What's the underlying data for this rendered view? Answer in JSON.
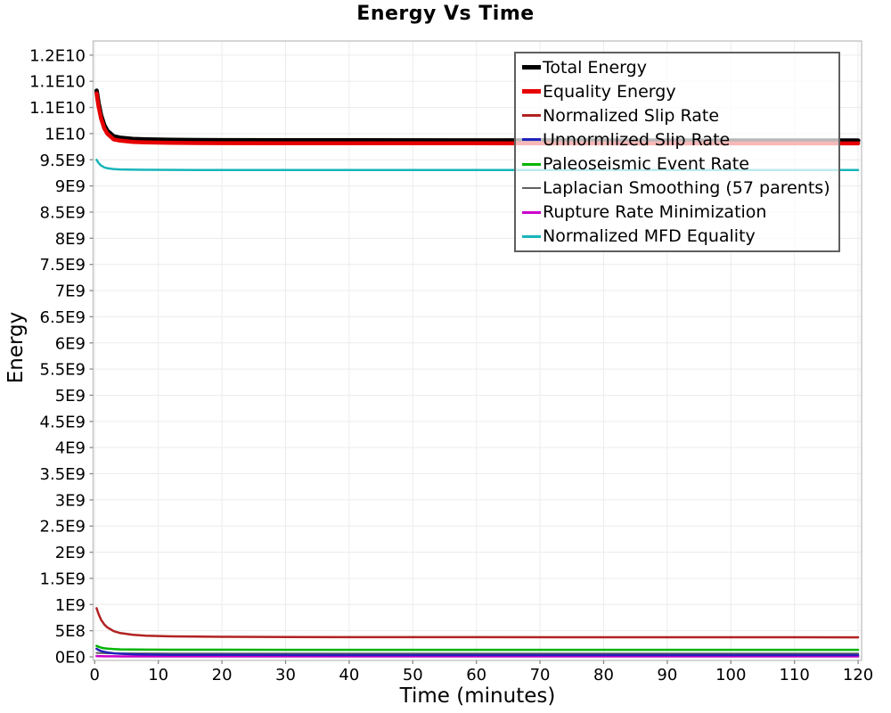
{
  "chart_data": {
    "type": "line",
    "title": "Energy Vs Time",
    "xlabel": "Time (minutes)",
    "ylabel": "Energy",
    "xlim": [
      -0.25,
      120.55
    ],
    "ylim": [
      -68000000,
      11770000000
    ],
    "grid": true,
    "legend_position": "top-right-inside",
    "x_ticks": [
      0,
      10,
      20,
      30,
      40,
      50,
      60,
      70,
      80,
      90,
      100,
      110,
      120
    ],
    "y_ticks": [
      {
        "value": 0,
        "label": "0E0"
      },
      {
        "value": 500000000,
        "label": "5E8"
      },
      {
        "value": 1000000000,
        "label": "1E9"
      },
      {
        "value": 1500000000,
        "label": "1.5E9"
      },
      {
        "value": 2000000000,
        "label": "2E9"
      },
      {
        "value": 2500000000,
        "label": "2.5E9"
      },
      {
        "value": 3000000000,
        "label": "3E9"
      },
      {
        "value": 3500000000,
        "label": "3.5E9"
      },
      {
        "value": 4000000000,
        "label": "4E9"
      },
      {
        "value": 4500000000,
        "label": "4.5E9"
      },
      {
        "value": 5000000000,
        "label": "5E9"
      },
      {
        "value": 5500000000,
        "label": "5.5E9"
      },
      {
        "value": 6000000000,
        "label": "6E9"
      },
      {
        "value": 6500000000,
        "label": "6.5E9"
      },
      {
        "value": 7000000000,
        "label": "7E9"
      },
      {
        "value": 7500000000,
        "label": "7.5E9"
      },
      {
        "value": 8000000000,
        "label": "8E9"
      },
      {
        "value": 8500000000,
        "label": "8.5E9"
      },
      {
        "value": 9000000000,
        "label": "9E9"
      },
      {
        "value": 9500000000,
        "label": "9.5E9"
      },
      {
        "value": 10000000000,
        "label": "1E10"
      },
      {
        "value": 10500000000,
        "label": "1.1E10"
      },
      {
        "value": 11000000000,
        "label": "1.1E10"
      },
      {
        "value": 11500000000,
        "label": "1.2E10"
      }
    ],
    "x": [
      0.3,
      0.6,
      1,
      1.5,
      2,
      3,
      4,
      6,
      8,
      12,
      16,
      20,
      30,
      40,
      60,
      80,
      100,
      120
    ],
    "series": [
      {
        "name": "Total Energy",
        "color": "#000000",
        "width": 5,
        "swatch_height": 5,
        "values": [
          10820000000,
          10580000000,
          10350000000,
          10160000000,
          10050000000,
          9945000000,
          9920000000,
          9897000000,
          9888000000,
          9879000000,
          9875000000,
          9873000000,
          9871000000,
          9870000000,
          9869000000,
          9868000000,
          9868000000,
          9868000000
        ]
      },
      {
        "name": "Equality Energy",
        "color": "#e60000",
        "width": 4.5,
        "swatch_height": 5,
        "values": [
          10770000000,
          10520000000,
          10290000000,
          10100000000,
          9995000000,
          9890000000,
          9865000000,
          9842000000,
          9833000000,
          9824000000,
          9820000000,
          9818000000,
          9816000000,
          9815000000,
          9814000000,
          9813000000,
          9813000000,
          9813000000
        ]
      },
      {
        "name": "Normalized Slip Rate",
        "color": "#b22222",
        "width": 2.5,
        "swatch_height": 3,
        "values": [
          930000000,
          820000000,
          710000000,
          620000000,
          560000000,
          490000000,
          455000000,
          420000000,
          405000000,
          392000000,
          386000000,
          383000000,
          379000000,
          377000000,
          376000000,
          375000000,
          375000000,
          374000000
        ]
      },
      {
        "name": "Unnormlized Slip Rate",
        "color": "#2222bb",
        "width": 2.5,
        "swatch_height": 3,
        "values": [
          155000000,
          132000000,
          112000000,
          95000000,
          84000000,
          69000000,
          60000000,
          50000000,
          45000000,
          40000000,
          38000000,
          37000000,
          36000000,
          35000000,
          35000000,
          34000000,
          34000000,
          34000000
        ]
      },
      {
        "name": "Paleoseismic Event Rate",
        "color": "#00b400",
        "width": 2.5,
        "swatch_height": 3,
        "values": [
          210000000,
          193000000,
          177000000,
          164000000,
          156000000,
          148000000,
          144000000,
          140000000,
          138000000,
          137000000,
          136000000,
          136000000,
          135000000,
          135000000,
          135000000,
          135000000,
          135000000,
          135000000
        ]
      },
      {
        "name": "Laplacian Smoothing (57 parents)",
        "color": "#606060",
        "width": 2,
        "swatch_height": 2,
        "values": [
          75000000,
          73000000,
          71000000,
          70000000,
          69000000,
          68000000,
          67000000,
          66000000,
          66000000,
          65000000,
          65000000,
          65000000,
          65000000,
          65000000,
          65000000,
          65000000,
          65000000,
          65000000
        ]
      },
      {
        "name": "Rupture Rate Minimization",
        "color": "#cc00cc",
        "width": 2.5,
        "swatch_height": 3,
        "values": [
          15000000,
          13500000,
          12000000,
          11000000,
          10500000,
          9800000,
          9400000,
          9000000,
          8800000,
          8500000,
          8400000,
          8300000,
          8200000,
          8100000,
          8000000,
          8000000,
          8000000,
          8000000
        ]
      },
      {
        "name": "Normalized MFD Equality",
        "color": "#17b5ba",
        "width": 2.5,
        "swatch_height": 3,
        "values": [
          9500000000,
          9440000000,
          9390000000,
          9355000000,
          9338000000,
          9322000000,
          9316000000,
          9311000000,
          9309000000,
          9307000000,
          9306000000,
          9306000000,
          9305000000,
          9305000000,
          9304000000,
          9304000000,
          9304000000,
          9304000000
        ]
      }
    ],
    "colors": {
      "grid": "#ececec",
      "frame": "#bfbfbf",
      "tick": "#8a8a8a",
      "text": "#000000",
      "legend_border": "#5f5f5f"
    }
  }
}
